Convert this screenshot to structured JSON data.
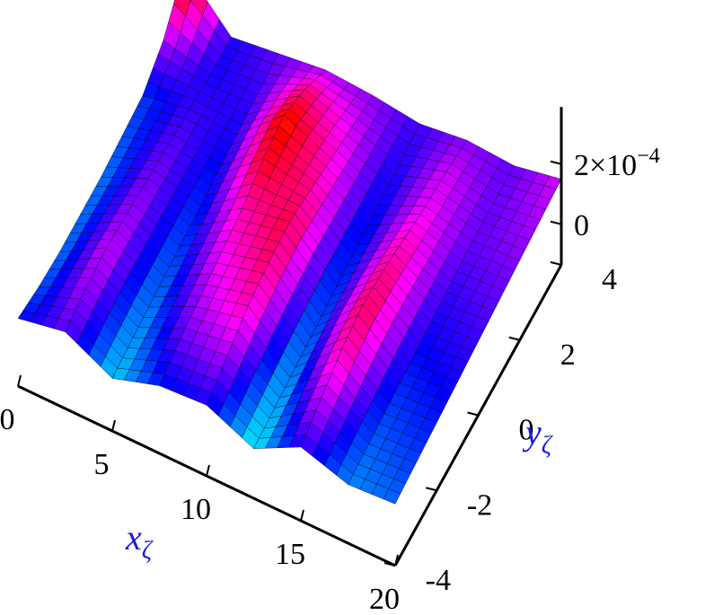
{
  "chart_data": {
    "type": "surface3d",
    "xlabel": {
      "base": "x",
      "sub": "ζ"
    },
    "ylabel": {
      "base": "y",
      "sub": "ζ"
    },
    "xlim": [
      0,
      20
    ],
    "ylim": [
      -4,
      4
    ],
    "zlim": [
      -0.000135,
      0.00039
    ],
    "xticks": [
      0,
      5,
      10,
      15,
      20
    ],
    "yticks": [
      -4,
      -2,
      0,
      2,
      4
    ],
    "zticks": [
      0,
      {
        "value": 0.0002,
        "label": "2×10",
        "exponent": "−4"
      }
    ],
    "x": [
      0,
      2.5,
      5,
      7.5,
      10,
      12.5,
      15,
      17.5,
      20
    ],
    "y": [
      -4,
      -3,
      -2,
      -1,
      0,
      1,
      2,
      3,
      4
    ],
    "z": [
      [
        9e-05,
        0.00012,
        4e-05,
        9e-05,
        0.0001,
        3e-05,
        0.00011,
        6e-05,
        7e-05
      ],
      [
        7e-05,
        0.00014,
        5e-05,
        0.00012,
        0.00014,
        4e-05,
        0.00015,
        7e-05,
        8e-05
      ],
      [
        6e-05,
        0.00015,
        6e-05,
        0.00014,
        0.00018,
        5e-05,
        0.00019,
        8e-05,
        9e-05
      ],
      [
        6e-05,
        0.00014,
        7e-05,
        0.00016,
        0.0002,
        6e-05,
        0.00021,
        9e-05,
        0.0001
      ],
      [
        6e-05,
        0.00013,
        8e-05,
        0.00018,
        0.00021,
        7e-05,
        0.0002,
        0.0001,
        0.00011
      ],
      [
        7e-05,
        0.00012,
        9e-05,
        0.00022,
        0.00019,
        8e-05,
        0.00018,
        0.00011,
        0.00012
      ],
      [
        8e-05,
        0.00011,
        0.0001,
        0.00024,
        0.00017,
        9e-05,
        0.00016,
        0.00012,
        0.00013
      ],
      [
        0.00014,
        0.0001,
        0.00011,
        0.0002,
        0.00015,
        0.0001,
        0.00015,
        0.00012,
        0.00014
      ],
      [
        0.00026,
        0.0001,
        0.00012,
        0.00014,
        0.00013,
        0.00011,
        0.00013,
        0.00012,
        0.00015
      ]
    ]
  }
}
